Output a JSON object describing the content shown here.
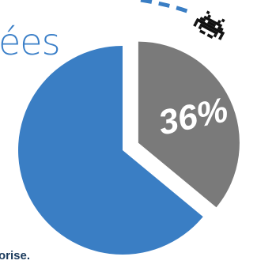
{
  "title_fragment": "ées",
  "footnote_fragment": "orise.",
  "colors": {
    "primary": "#3a7ec4",
    "highlight": "#7a7a7a",
    "label": "#ffffff",
    "icon": "#111111",
    "title_text": "#3a7fc8",
    "footnote_text": "#1a3a5c"
  },
  "chart_data": {
    "type": "pie",
    "values": [
      64,
      36
    ],
    "labels": [
      "",
      "36%"
    ],
    "exploded_index": 1,
    "legend": "none",
    "grid": false
  },
  "icon": "space-invader-icon"
}
